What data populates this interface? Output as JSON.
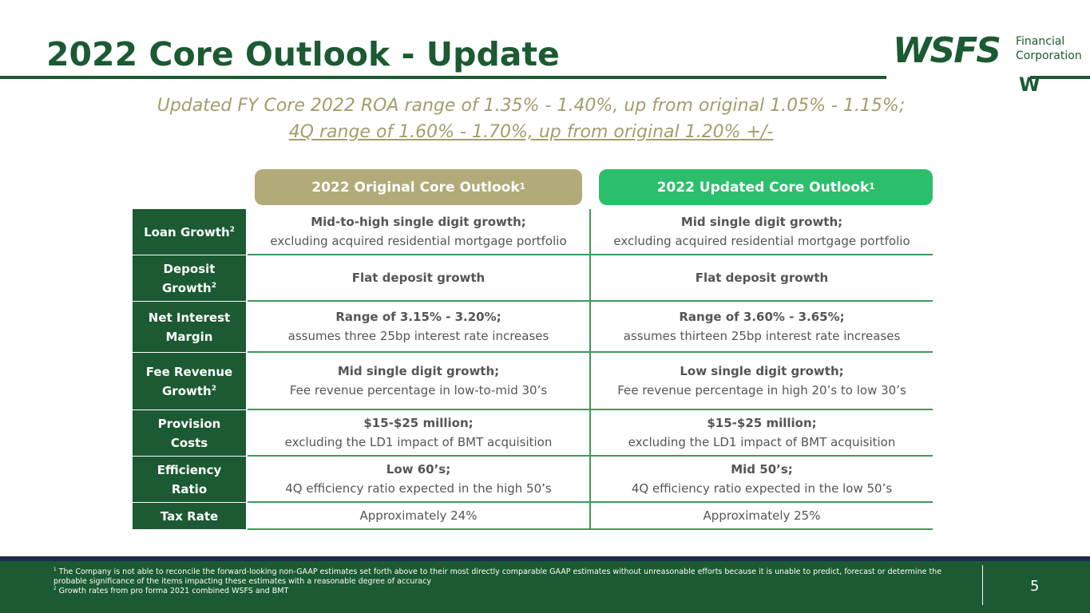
{
  "header": {
    "title": "2022 Core Outlook - Update",
    "logo": {
      "main": "WSFS",
      "line1": "Financial",
      "line2": "Corporation",
      "mark": "W"
    }
  },
  "subtitle": {
    "line1": "Updated FY Core 2022 ROA range of 1.35% - 1.40%, up from original 1.05% - 1.15%;",
    "line2": "4Q range of 1.60% - 1.70%, up from original 1.20% +/-"
  },
  "table": {
    "headers": [
      {
        "text": "2022 Original Core Outlook",
        "sup": "1"
      },
      {
        "text": "2022 Updated Core Outlook",
        "sup": "1"
      }
    ],
    "rows": [
      {
        "label": "Loan Growth",
        "sup": "2",
        "cells": [
          {
            "bold": "Mid-to-high single digit growth;",
            "text": "excluding acquired residential mortgage portfolio"
          },
          {
            "bold": "Mid single digit growth;",
            "text": "excluding acquired residential mortgage portfolio"
          }
        ]
      },
      {
        "label": "Deposit Growth",
        "sup": "2",
        "cells": [
          {
            "bold": "Flat deposit growth"
          },
          {
            "bold": "Flat deposit growth"
          }
        ]
      },
      {
        "label": "Net Interest Margin",
        "cells": [
          {
            "bold": "Range of 3.15% - 3.20%;",
            "text": "assumes three 25bp interest rate increases"
          },
          {
            "bold": "Range of 3.60% - 3.65%;",
            "text": "assumes thirteen 25bp interest rate increases"
          }
        ]
      },
      {
        "label": "Fee Revenue Growth",
        "sup": "2",
        "cells": [
          {
            "bold": "Mid single digit growth;",
            "text": "Fee revenue percentage in low-to-mid 30’s"
          },
          {
            "bold": "Low single digit growth;",
            "text": "Fee revenue percentage in high 20’s to low 30’s"
          }
        ]
      },
      {
        "label": "Provision Costs",
        "cells": [
          {
            "bold": "$15-$25 million;",
            "text": "excluding the LD1 impact of BMT acquisition"
          },
          {
            "bold": "$15-$25 million;",
            "text": "excluding the LD1 impact of BMT acquisition"
          }
        ]
      },
      {
        "label": "Efficiency Ratio",
        "cells": [
          {
            "bold": "Low 60’s;",
            "text": "4Q efficiency ratio expected in the high 50’s"
          },
          {
            "bold": "Mid 50’s;",
            "text": "4Q efficiency ratio expected in the low 50’s"
          }
        ]
      },
      {
        "label": "Tax Rate",
        "cells": [
          {
            "text": "Approximately 24%"
          },
          {
            "text": "Approximately 25%"
          }
        ]
      }
    ]
  },
  "footer": {
    "notes": [
      {
        "mark": "1",
        "text": "The Company is not able to reconcile the forward-looking non-GAAP estimates set forth above to their most directly comparable GAAP estimates without unreasonable efforts because it is unable to predict, forecast or determine the probable significance of the items impacting these estimates with a reasonable degree of accuracy"
      },
      {
        "mark": "2",
        "text": "Growth rates from pro forma 2021 combined WSFS and BMT"
      }
    ],
    "page": "5"
  }
}
